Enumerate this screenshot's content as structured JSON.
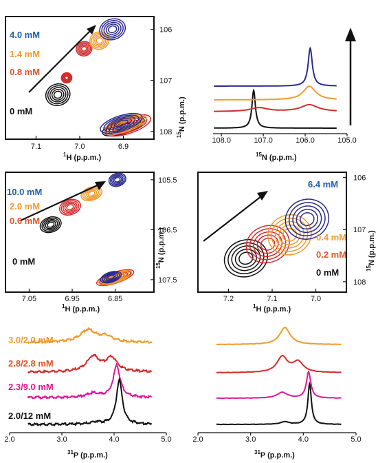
{
  "colors": {
    "black": "#111111",
    "red": "#d42a2a",
    "orange": "#f39a2a",
    "blue": "#2a2a8e",
    "magenta": "#e0169a",
    "label_blue": "#1f5fae",
    "label_orange": "#f39a2a",
    "label_red": "#e0542a",
    "label_magenta": "#d81b8c"
  },
  "chart_data": [
    {
      "id": "panelA",
      "type": "scatter",
      "subtype": "2D NMR contour (HSQC titration)",
      "xlabel_prefix": "1",
      "xlabel_nucleus": "H",
      "xlabel_unit": " (p.p.m.)",
      "ylabel_prefix": "15",
      "ylabel_nucleus": "N",
      "ylabel_unit": " (p.p.m.)",
      "xlim": [
        7.17,
        6.83
      ],
      "ylim": [
        105.75,
        108.15
      ],
      "xticks": [
        7.1,
        7.0,
        6.9
      ],
      "xtick_labels": [
        "7.1",
        "7.0",
        "6.9"
      ],
      "yticks": [
        106,
        107,
        108
      ],
      "ytick_labels": [
        "106",
        "107",
        "108"
      ],
      "legend": [
        "4.0 mM",
        "1.4 mM",
        "0.8 mM",
        "0 mM"
      ],
      "series": [
        {
          "name": "0 mM",
          "color": "black",
          "peaks": [
            {
              "x": 7.05,
              "y": 107.28,
              "rx": 0.028,
              "ry": 0.21
            },
            {
              "x": 6.9,
              "y": 107.9,
              "rx": 0.05,
              "ry": 0.14
            }
          ]
        },
        {
          "name": "0.8 mM",
          "color": "red",
          "peaks": [
            {
              "x": 6.99,
              "y": 106.38,
              "rx": 0.018,
              "ry": 0.14
            },
            {
              "x": 7.03,
              "y": 106.95,
              "rx": 0.012,
              "ry": 0.1
            },
            {
              "x": 6.89,
              "y": 107.88,
              "rx": 0.055,
              "ry": 0.16
            }
          ]
        },
        {
          "name": "1.4 mM",
          "color": "orange",
          "peaks": [
            {
              "x": 6.955,
              "y": 106.22,
              "rx": 0.022,
              "ry": 0.17
            },
            {
              "x": 6.895,
              "y": 107.86,
              "rx": 0.05,
              "ry": 0.14
            }
          ]
        },
        {
          "name": "4.0 mM",
          "color": "blue",
          "peaks": [
            {
              "x": 6.925,
              "y": 106.0,
              "rx": 0.03,
              "ry": 0.2
            },
            {
              "x": 6.905,
              "y": 107.84,
              "rx": 0.05,
              "ry": 0.15
            }
          ]
        }
      ]
    },
    {
      "id": "panelB",
      "type": "line",
      "subtype": "1D 15N slices",
      "xlabel_prefix": "15",
      "xlabel_nucleus": "N",
      "xlabel_unit": " (p.p.m.)",
      "xlim": [
        108.2,
        105.0
      ],
      "xticks": [
        108.0,
        107.0,
        106.0,
        105.0
      ],
      "xtick_labels": [
        "108.0",
        "107.0",
        "106.0",
        "105.0"
      ],
      "series": [
        {
          "name": "0 mM",
          "color": "black",
          "peaks": [
            {
              "x": 107.23,
              "h": 1.0,
              "w": 0.05
            }
          ]
        },
        {
          "name": "0.8 mM",
          "color": "red",
          "peaks": [
            {
              "x": 107.1,
              "h": 0.1,
              "w": 0.25
            },
            {
              "x": 105.9,
              "h": 0.18,
              "w": 0.25
            }
          ]
        },
        {
          "name": "1.4 mM",
          "color": "orange",
          "peaks": [
            {
              "x": 105.9,
              "h": 0.36,
              "w": 0.18
            }
          ]
        },
        {
          "name": "4.0 mM",
          "color": "blue",
          "peaks": [
            {
              "x": 105.88,
              "h": 1.0,
              "w": 0.06
            }
          ]
        }
      ]
    },
    {
      "id": "panelC",
      "type": "scatter",
      "subtype": "2D NMR contour (HSQC titration)",
      "xlabel_prefix": "1",
      "xlabel_nucleus": "H",
      "xlabel_unit": " (p.p.m.)",
      "ylabel_prefix": "15",
      "ylabel_nucleus": "N",
      "ylabel_unit": " (p.p.m.)",
      "xlim": [
        7.105,
        6.76
      ],
      "ylim": [
        105.35,
        107.75
      ],
      "xticks": [
        7.05,
        6.95,
        6.85
      ],
      "xtick_labels": [
        "7.05",
        "6.95",
        "6.85"
      ],
      "yticks": [
        105.5,
        106.5,
        107.5
      ],
      "ytick_labels": [
        "105.5",
        "106.5",
        "107.5"
      ],
      "legend": [
        "10.0 mM",
        "2.0 mM",
        "0.6 mM",
        "0 mM"
      ],
      "series": [
        {
          "name": "0 mM",
          "color": "black",
          "peaks": [
            {
              "x": 7.0,
              "y": 106.4,
              "rx": 0.025,
              "ry": 0.15
            }
          ]
        },
        {
          "name": "0.6 mM",
          "color": "red",
          "peaks": [
            {
              "x": 6.955,
              "y": 106.05,
              "rx": 0.025,
              "ry": 0.15
            },
            {
              "x": 6.85,
              "y": 107.46,
              "rx": 0.045,
              "ry": 0.11
            }
          ]
        },
        {
          "name": "2.0 mM",
          "color": "orange",
          "peaks": [
            {
              "x": 6.905,
              "y": 105.78,
              "rx": 0.025,
              "ry": 0.13
            },
            {
              "x": 6.85,
              "y": 107.46,
              "rx": 0.04,
              "ry": 0.1
            }
          ]
        },
        {
          "name": "10.0 mM",
          "color": "blue",
          "peaks": [
            {
              "x": 6.845,
              "y": 105.5,
              "rx": 0.02,
              "ry": 0.13
            },
            {
              "x": 6.86,
              "y": 107.45,
              "rx": 0.025,
              "ry": 0.1
            }
          ]
        }
      ]
    },
    {
      "id": "panelD",
      "type": "scatter",
      "subtype": "2D NMR contour (HSQC titration)",
      "xlabel_prefix": "1",
      "xlabel_nucleus": "H",
      "xlabel_unit": " (p.p.m.)",
      "ylabel_prefix": "15",
      "ylabel_nucleus": "N",
      "ylabel_unit": " (p.p.m.)",
      "xlim": [
        7.27,
        6.93
      ],
      "ylim": [
        105.9,
        108.2
      ],
      "xticks": [
        7.2,
        7.1,
        7.0
      ],
      "xtick_labels": [
        "7.2",
        "7.1",
        "7.0"
      ],
      "yticks": [
        106,
        107,
        108
      ],
      "ytick_labels": [
        "106",
        "107",
        "108"
      ],
      "legend": [
        "6.4 mM",
        "0.4 mM",
        "0.2 mM",
        "0 mM"
      ],
      "series": [
        {
          "name": "0 mM",
          "color": "black",
          "peaks": [
            {
              "x": 7.16,
              "y": 107.55,
              "rx": 0.05,
              "ry": 0.35
            }
          ]
        },
        {
          "name": "0.2 mM",
          "color": "red",
          "peaks": [
            {
              "x": 7.11,
              "y": 107.28,
              "rx": 0.05,
              "ry": 0.35
            }
          ]
        },
        {
          "name": "0.4 mM",
          "color": "orange",
          "peaks": [
            {
              "x": 7.06,
              "y": 107.1,
              "rx": 0.05,
              "ry": 0.38
            }
          ]
        },
        {
          "name": "6.4 mM",
          "color": "blue",
          "peaks": [
            {
              "x": 7.02,
              "y": 106.8,
              "rx": 0.05,
              "ry": 0.38
            }
          ]
        }
      ]
    },
    {
      "id": "panelE",
      "type": "line",
      "subtype": "1D 31P spectra",
      "xlabel_prefix": "31",
      "xlabel_nucleus": "P",
      "xlabel_unit": " (p.p.m.)",
      "xlim": [
        2.0,
        5.0
      ],
      "xticks": [
        2.0,
        3.0,
        4.0,
        5.0
      ],
      "xtick_labels": [
        "2.0",
        "3.0",
        "4.0",
        "5.0"
      ],
      "legend": [
        "3.0/2.0 mM",
        "2.8/2.8 mM",
        "2.3/9.0 mM",
        "2.0/12 mM"
      ],
      "series": [
        {
          "name": "3.0/2.0 mM",
          "color": "orange",
          "peaks": [
            {
              "x": 3.5,
              "h": 0.45,
              "w": 0.18
            },
            {
              "x": 3.85,
              "h": 0.2,
              "w": 0.15
            }
          ]
        },
        {
          "name": "2.8/2.8 mM",
          "color": "red",
          "peaks": [
            {
              "x": 3.6,
              "h": 0.55,
              "w": 0.15
            },
            {
              "x": 3.95,
              "h": 0.5,
              "w": 0.13
            }
          ]
        },
        {
          "name": "2.3/9.0 mM",
          "color": "magenta",
          "peaks": [
            {
              "x": 4.05,
              "h": 1.15,
              "w": 0.08
            },
            {
              "x": 3.6,
              "h": 0.15,
              "w": 0.15
            }
          ]
        },
        {
          "name": "2.0/12 mM",
          "color": "black",
          "peaks": [
            {
              "x": 4.1,
              "h": 1.6,
              "w": 0.07
            },
            {
              "x": 3.65,
              "h": 0.08,
              "w": 0.12
            }
          ]
        }
      ]
    },
    {
      "id": "panelF",
      "type": "line",
      "subtype": "1D 31P spectra",
      "xlabel_prefix": "31",
      "xlabel_nucleus": "P",
      "xlabel_unit": " (p.p.m.)",
      "xlim": [
        2.0,
        5.0
      ],
      "xticks": [
        2.0,
        3.0,
        4.0,
        5.0
      ],
      "xtick_labels": [
        "2.0",
        "3.0",
        "4.0",
        "5.0"
      ],
      "series": [
        {
          "name": "3.0/2.0 mM",
          "color": "orange",
          "peaks": [
            {
              "x": 3.65,
              "h": 0.65,
              "w": 0.12
            }
          ]
        },
        {
          "name": "2.8/2.8 mM",
          "color": "red",
          "peaks": [
            {
              "x": 3.6,
              "h": 0.6,
              "w": 0.12
            },
            {
              "x": 3.9,
              "h": 0.4,
              "w": 0.12
            }
          ]
        },
        {
          "name": "2.3/9.0 mM",
          "color": "magenta",
          "peaks": [
            {
              "x": 4.1,
              "h": 1.0,
              "w": 0.05
            },
            {
              "x": 3.6,
              "h": 0.22,
              "w": 0.12
            }
          ]
        },
        {
          "name": "2.0/12 mM",
          "color": "black",
          "peaks": [
            {
              "x": 4.12,
              "h": 1.55,
              "w": 0.04
            },
            {
              "x": 3.65,
              "h": 0.1,
              "w": 0.1
            }
          ]
        }
      ]
    }
  ]
}
